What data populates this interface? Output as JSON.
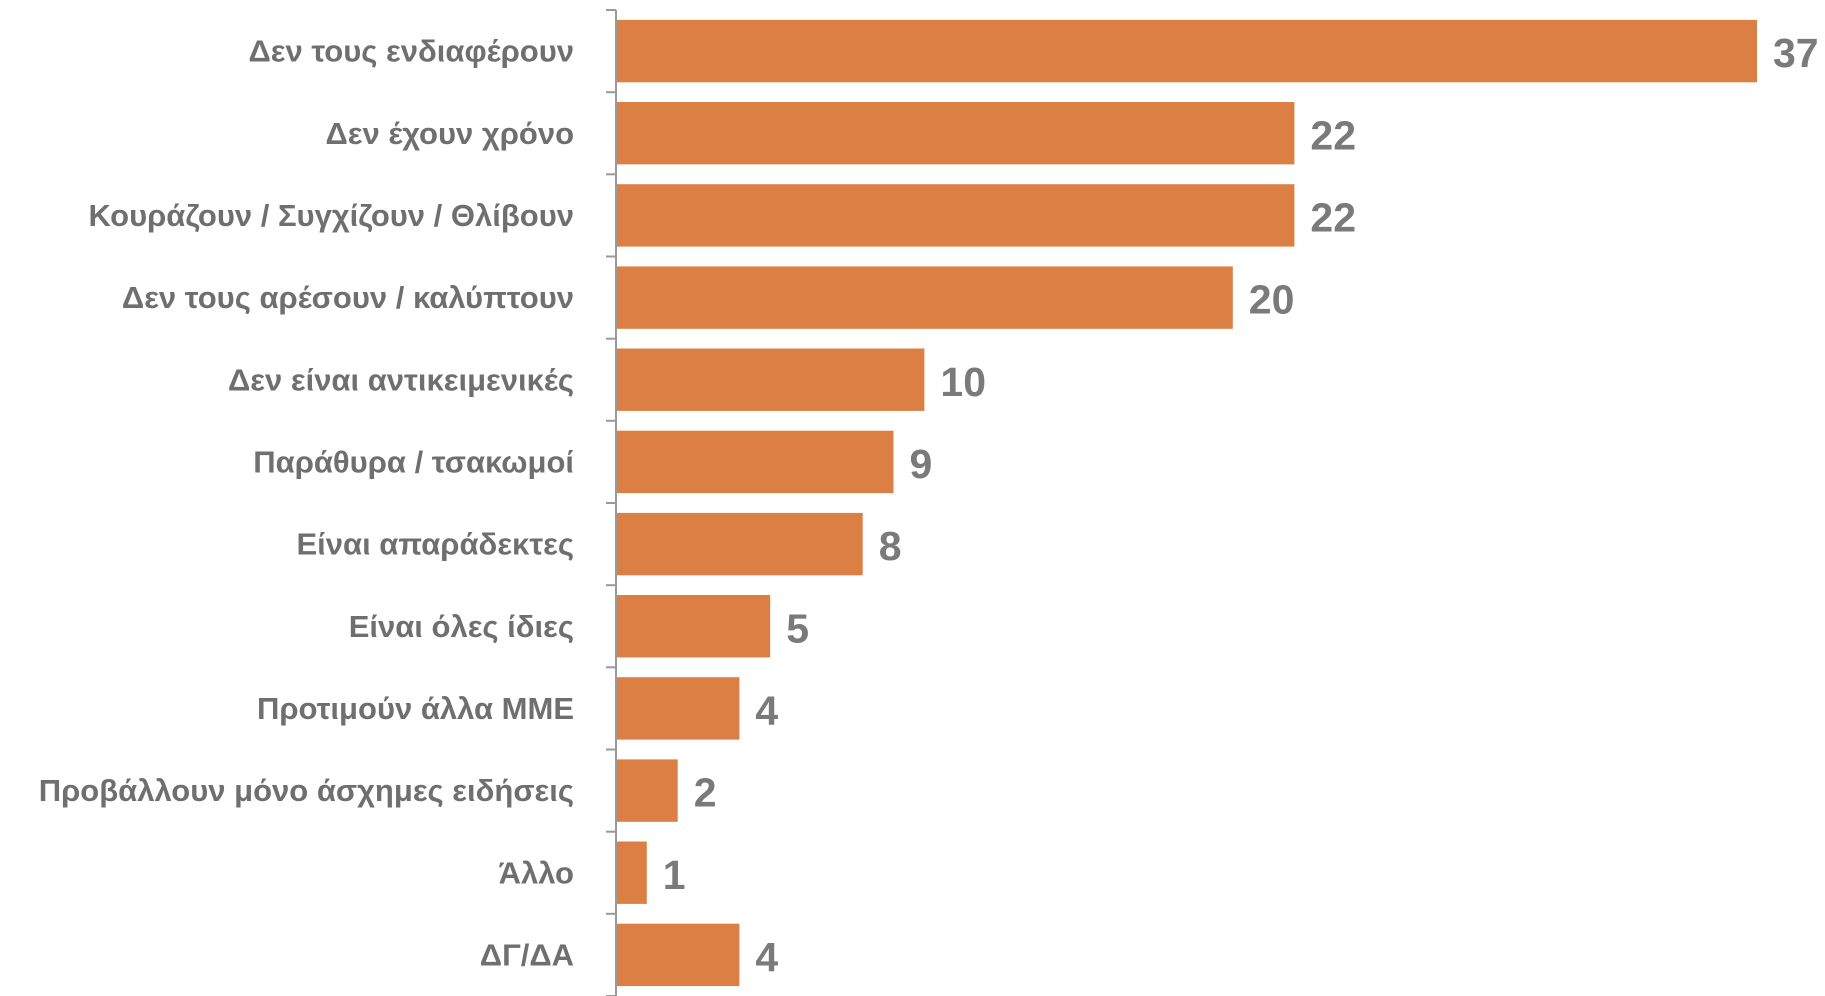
{
  "chart_data": {
    "type": "bar",
    "orientation": "horizontal",
    "title": "",
    "xlabel": "",
    "ylabel": "",
    "categories": [
      "Δεν τους ενδιαφέρουν",
      "Δεν έχουν χρόνο",
      "Κουράζουν / Συγχίζουν / Θλίβουν",
      "Δεν τους αρέσουν / καλύπτουν",
      "Δεν είναι αντικειμενικές",
      "Παράθυρα / τσακωμοί",
      "Είναι απαράδεκτες",
      "Είναι όλες ίδιες",
      "Προτιμούν άλλα ΜΜΕ",
      "Προβάλλουν μόνο άσχημες ειδήσεις",
      "Άλλο",
      "ΔΓ/ΔΑ"
    ],
    "values": [
      37,
      22,
      22,
      20,
      10,
      9,
      8,
      5,
      4,
      2,
      1,
      4
    ],
    "xlim": [
      0,
      37
    ],
    "grid": false,
    "legend": "none",
    "bar_color": "#dc7f45",
    "axis_color": "#9a9a9a"
  }
}
